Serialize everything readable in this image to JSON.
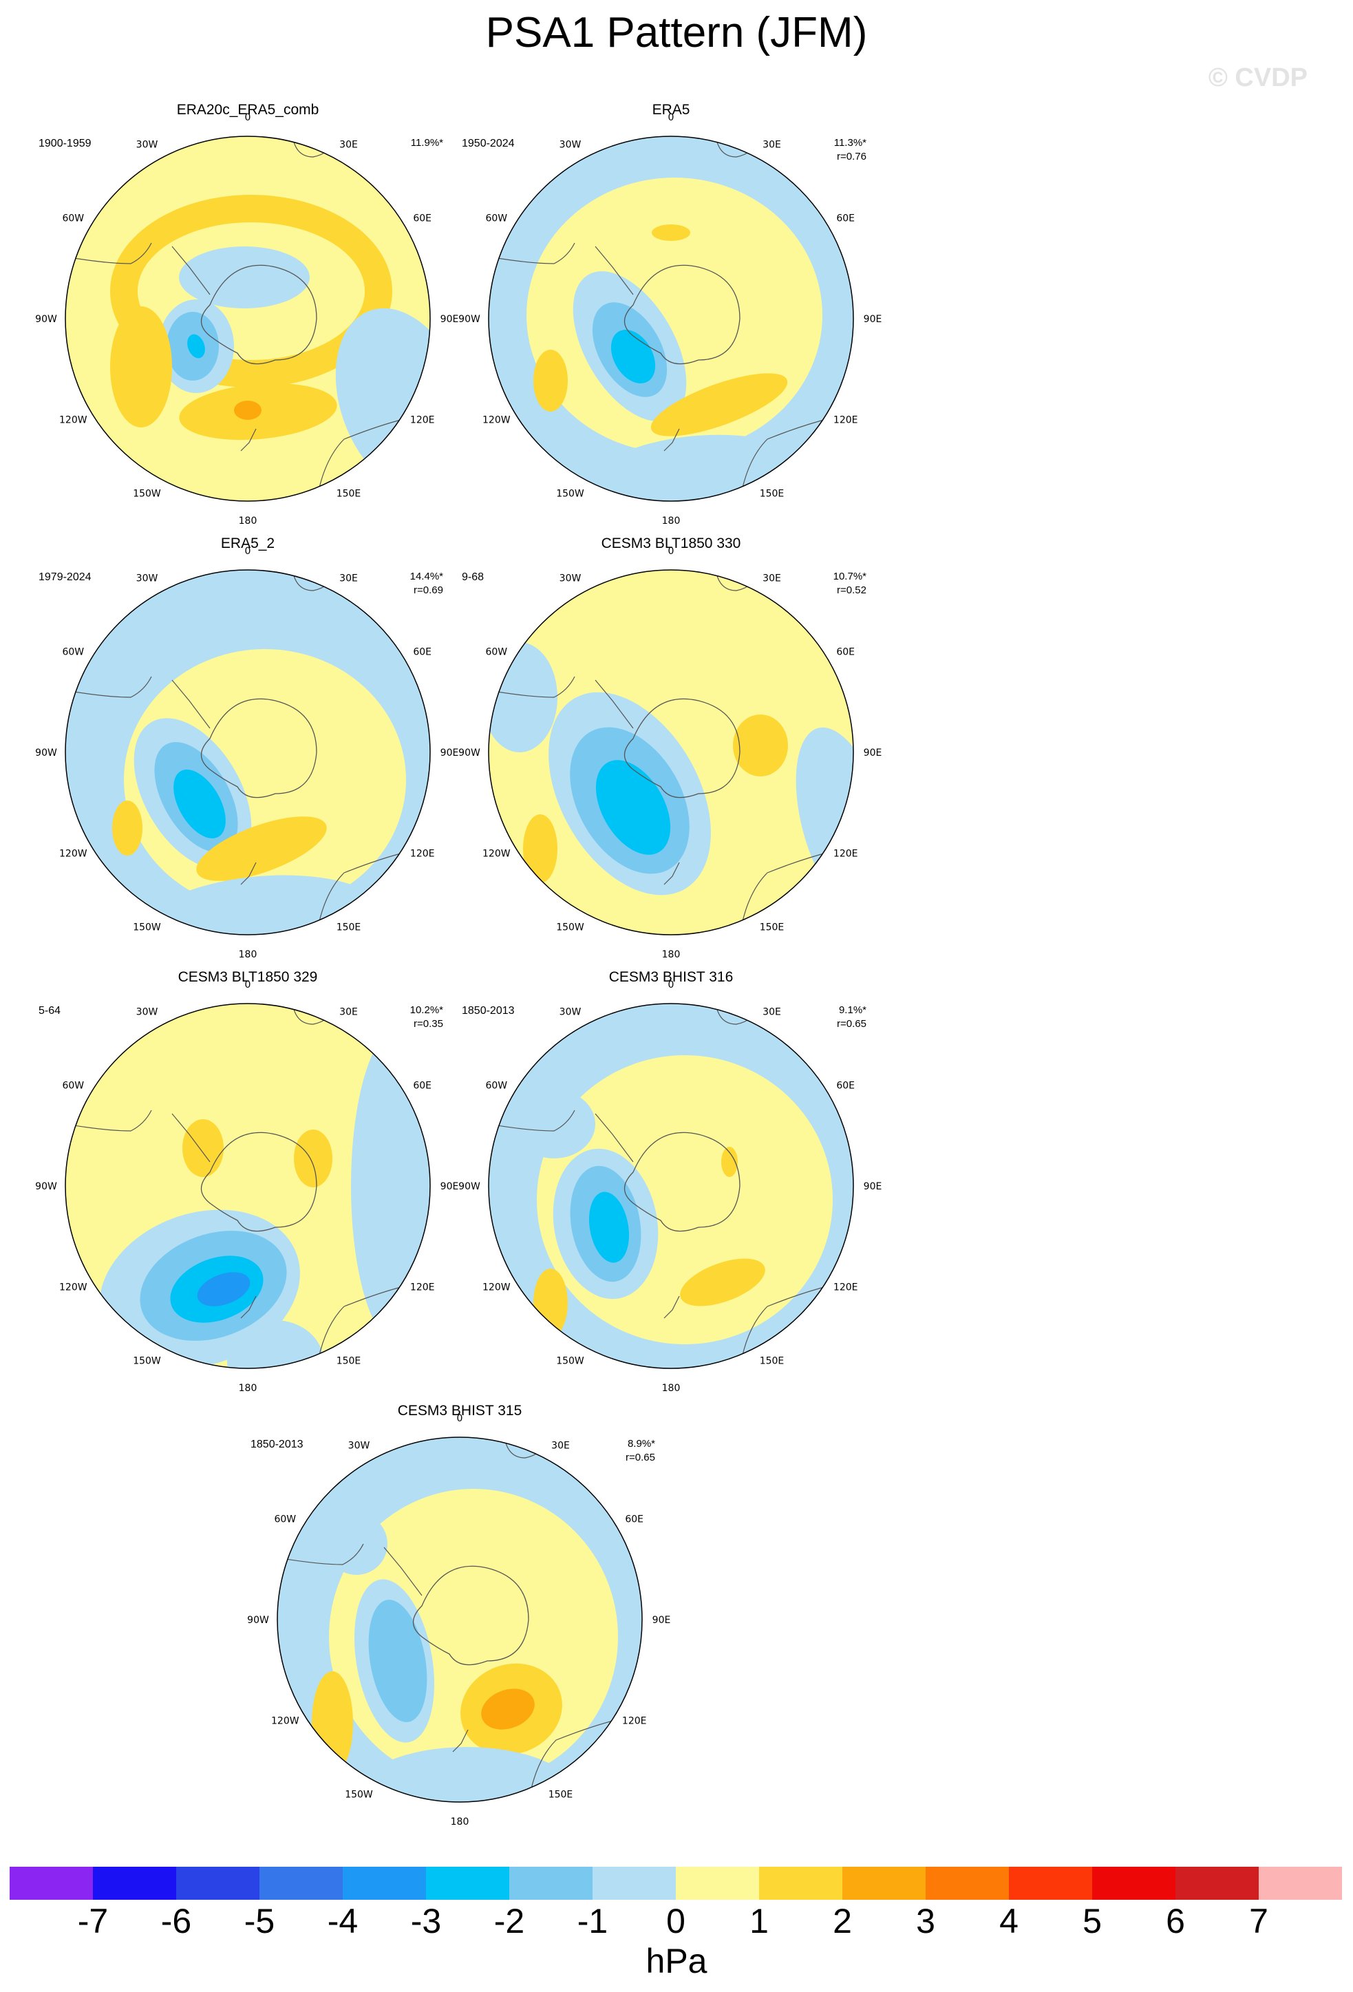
{
  "title": "PSA1 Pattern (JFM)",
  "watermark": "© CVDP",
  "longitude_labels": [
    "0",
    "30E",
    "60E",
    "90E",
    "120E",
    "150E",
    "180",
    "150W",
    "120W",
    "90W",
    "60W",
    "30W"
  ],
  "panels": [
    {
      "title": "ERA20c_ERA5_comb",
      "period": "1900-1959",
      "pct": "11.9%*",
      "corr": ""
    },
    {
      "title": "ERA5",
      "period": "1950-2024",
      "pct": "11.3%*",
      "corr": "r=0.76"
    },
    {
      "title": "ERA5_2",
      "period": "1979-2024",
      "pct": "14.4%*",
      "corr": "r=0.69"
    },
    {
      "title": "CESM3 BLT1850 330",
      "period": "9-68",
      "pct": "10.7%*",
      "corr": "r=0.52"
    },
    {
      "title": "CESM3 BLT1850 329",
      "period": "5-64",
      "pct": "10.2%*",
      "corr": "r=0.35"
    },
    {
      "title": "CESM3 BHIST 316",
      "period": "1850-2013",
      "pct": "9.1%*",
      "corr": "r=0.65"
    },
    {
      "title": "CESM3 BHIST 315",
      "period": "1850-2013",
      "pct": "8.9%*",
      "corr": "r=0.65"
    }
  ],
  "colorbar": {
    "unit": "hPa",
    "labels": [
      "-7",
      "-6",
      "-5",
      "-4",
      "-3",
      "-2",
      "-1",
      "0",
      "1",
      "2",
      "3",
      "4",
      "5",
      "6",
      "7"
    ],
    "colors": [
      "#8b25f2",
      "#1a12f5",
      "#2a43e6",
      "#3576ea",
      "#1d98f5",
      "#00c3f5",
      "#78c8f0",
      "#b3def4",
      "#fdf998",
      "#fdd835",
      "#fca90e",
      "#fd7a07",
      "#fd3707",
      "#ed0707",
      "#d11f21",
      "#fdb4b4"
    ]
  }
}
